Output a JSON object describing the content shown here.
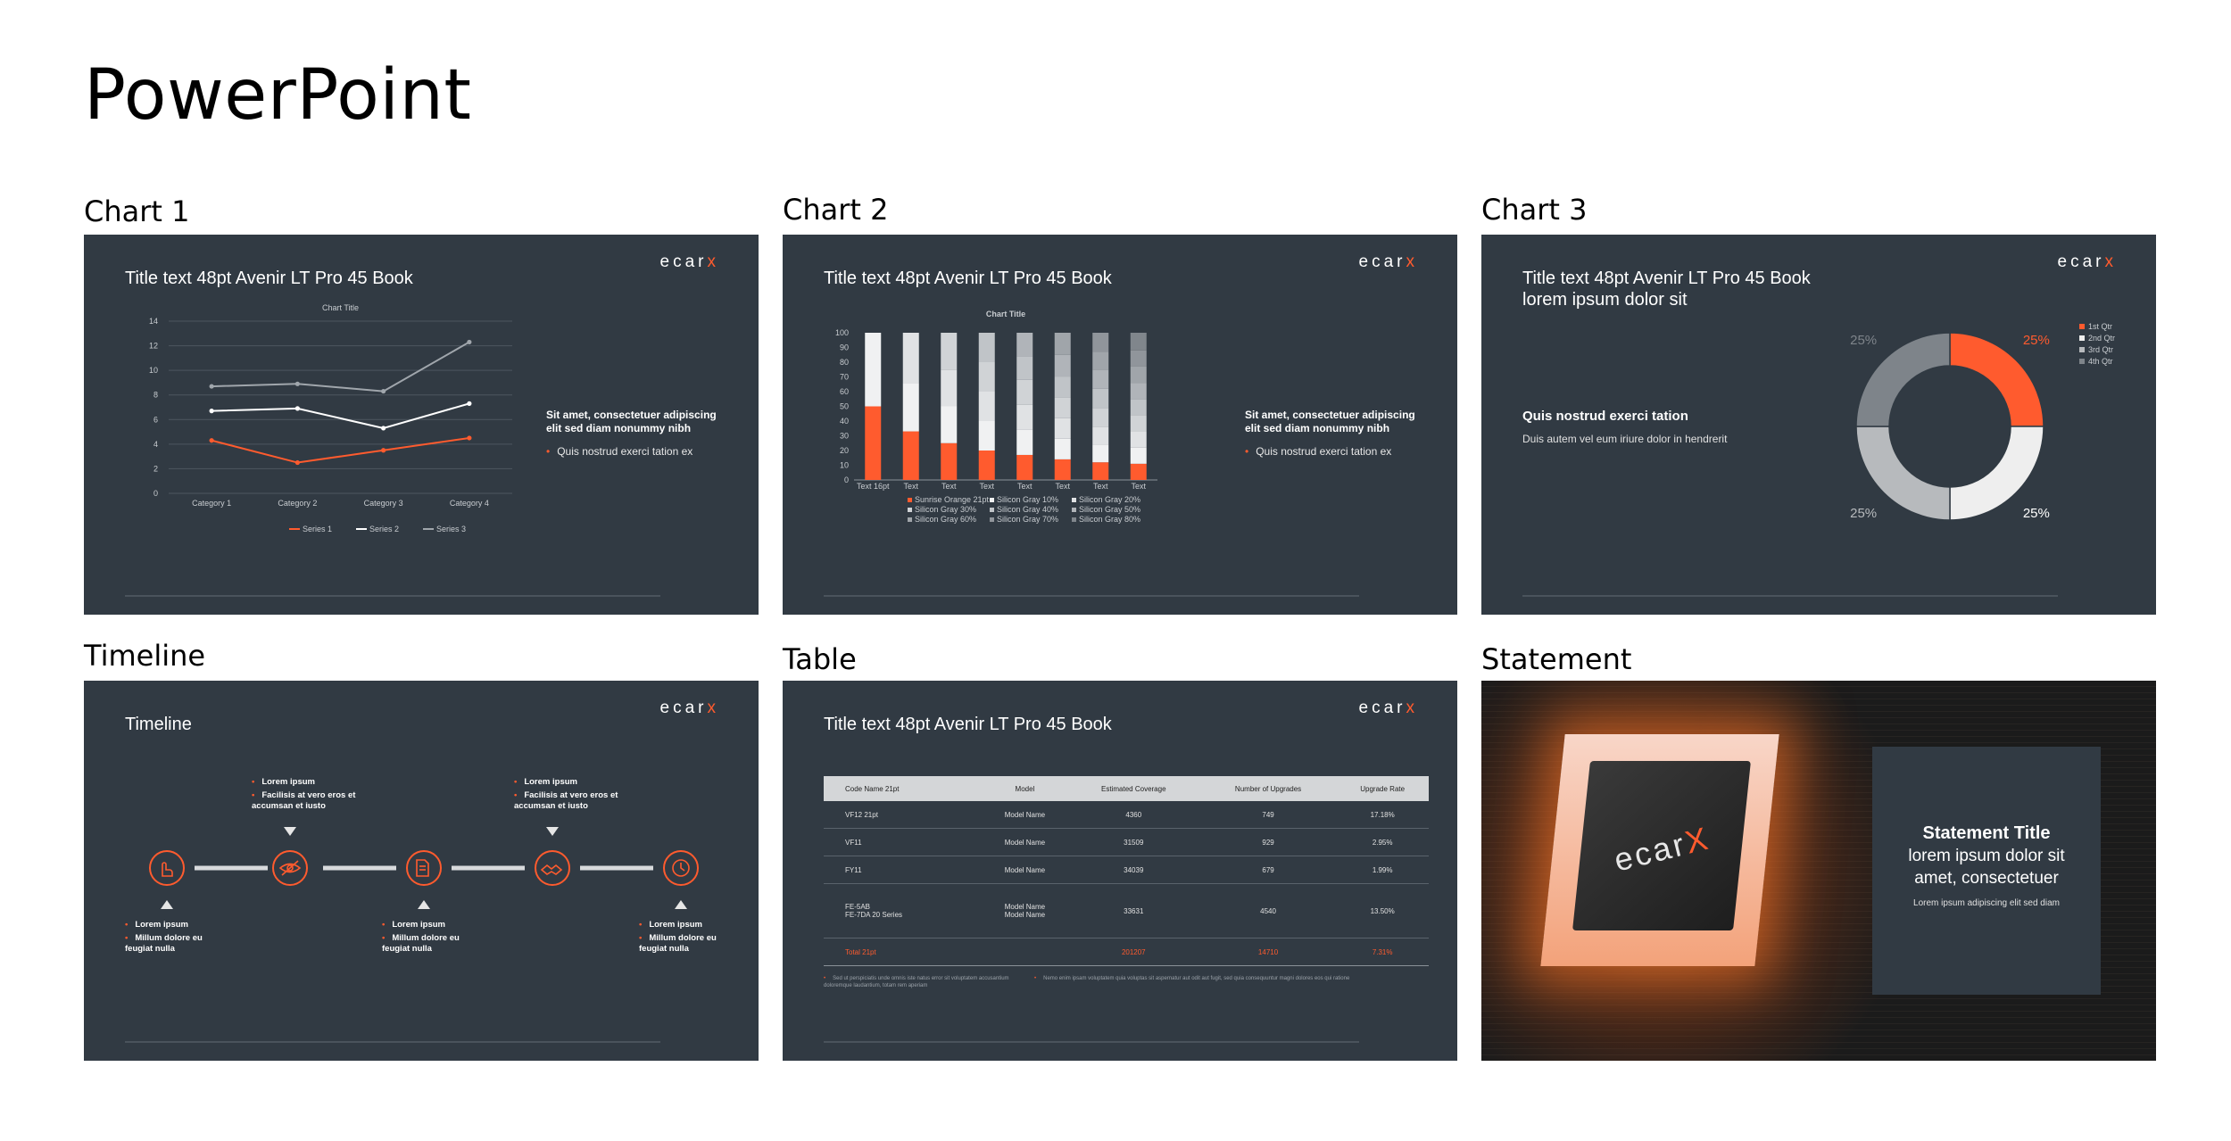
{
  "page": {
    "title": "PowerPoint"
  },
  "brand": {
    "logo_main": "ecar",
    "logo_accent": "x",
    "accent": "#ff5b2e",
    "slide_bg": "#313a43"
  },
  "sections": {
    "chart1": "Chart 1",
    "chart2": "Chart 2",
    "chart3": "Chart 3",
    "timeline": "Timeline",
    "table": "Table",
    "statement": "Statement"
  },
  "slide_common": {
    "title": "Title text 48pt Avenir LT Pro 45 Book",
    "side_heading": "Sit amet, consectetuer adipiscing elit sed diam nonummy nibh",
    "side_bullet": "Quis nostrud exerci tation ex"
  },
  "chart1": {
    "chart_data": {
      "type": "line",
      "title": "Chart Title",
      "categories": [
        "Category 1",
        "Category 2",
        "Category 3",
        "Category 4"
      ],
      "series": [
        {
          "name": "Series 1",
          "values": [
            4.3,
            2.5,
            3.5,
            4.5
          ],
          "color": "#ff5b2e"
        },
        {
          "name": "Series 2",
          "values": [
            6.7,
            6.9,
            5.3,
            7.3
          ],
          "color": "#ffffff"
        },
        {
          "name": "Series 3",
          "values": [
            8.7,
            8.9,
            8.3,
            12.3
          ],
          "color": "#a0a6ac"
        }
      ],
      "ylim": [
        0,
        14
      ],
      "yticks": [
        "0",
        "2",
        "4",
        "6",
        "8",
        "10",
        "12",
        "14"
      ],
      "legend": "bottom",
      "grid": true
    }
  },
  "chart2": {
    "chart_data": {
      "type": "bar",
      "title": "Chart Title",
      "categories": [
        "Text 16pt",
        "Text",
        "Text",
        "Text",
        "Text",
        "Text",
        "Text",
        "Text"
      ],
      "ylim": [
        0,
        100
      ],
      "yticks": [
        "0",
        "10",
        "20",
        "30",
        "40",
        "50",
        "60",
        "70",
        "80",
        "90",
        "100"
      ],
      "segments": [
        [
          50,
          50
        ],
        [
          33,
          33,
          34
        ],
        [
          25,
          25,
          25,
          25
        ],
        [
          20,
          20,
          20,
          20,
          20
        ],
        [
          17,
          17,
          17,
          17,
          16,
          16
        ],
        [
          14,
          14,
          14,
          14,
          14,
          15,
          15
        ],
        [
          12,
          12,
          12,
          13,
          13,
          13,
          12,
          13
        ],
        [
          11,
          11,
          11,
          11,
          11,
          11,
          11,
          11,
          12
        ]
      ],
      "legend_items": [
        "Sunrise Orange 21pt",
        "Silicon Gray 10%",
        "Silicon Gray 20%",
        "Silicon Gray 30%",
        "Silicon Gray 40%",
        "Silicon Gray 50%",
        "Silicon Gray 60%",
        "Silicon Gray 70%",
        "Silicon Gray 80%"
      ],
      "legend_colors": [
        "#ff5b2e",
        "#f0f1f2",
        "#e0e2e4",
        "#d0d3d6",
        "#c0c4c8",
        "#b0b4b9",
        "#a0a5aa",
        "#90959b",
        "#80868c"
      ],
      "legend": "bottom"
    }
  },
  "chart3": {
    "title_line1": "Title text 48pt Avenir LT Pro 45 Book",
    "title_line2": "lorem ipsum dolor sit",
    "heading": "Quis nostrud exerci tation",
    "body": "Duis autem vel eum iriure dolor in hendrerit",
    "chart_data": {
      "type": "pie",
      "categories": [
        "1st Qtr",
        "2nd Qtr",
        "3rd Qtr",
        "4th Qtr"
      ],
      "values": [
        25,
        25,
        25,
        25
      ],
      "labels": [
        "25%",
        "25%",
        "25%",
        "25%"
      ],
      "colors": [
        "#ff5b2e",
        "#eeeeee",
        "#b7babd",
        "#7e848a"
      ],
      "legend": "top-right"
    }
  },
  "timeline": {
    "title": "Timeline",
    "top_items": [
      {
        "line1": "Lorem ipsum",
        "line2": "Facilisis at vero eros et accumsan et iusto"
      },
      {
        "line1": "Lorem ipsum",
        "line2": "Facilisis at vero eros et accumsan et iusto"
      }
    ],
    "bottom_items": [
      {
        "line1": "Lorem ipsum",
        "line2": "Millum dolore eu feugiat nulla"
      },
      {
        "line1": "Lorem ipsum",
        "line2": "Millum dolore eu feugiat nulla"
      },
      {
        "line1": "Lorem ipsum",
        "line2": "Millum dolore eu feugiat nulla"
      }
    ],
    "icons": [
      "touch-icon",
      "eye-icon",
      "document-icon",
      "handshake-icon",
      "clock-icon"
    ]
  },
  "table": {
    "title": "Title text 48pt Avenir LT Pro 45 Book",
    "headers": [
      "Code Name 21pt",
      "Model",
      "Estimated Coverage",
      "Number of Upgrades",
      "Upgrade Rate"
    ],
    "rows": [
      [
        "VF12 21pt",
        "Model Name",
        "4360",
        "749",
        "17.18%"
      ],
      [
        "VF11",
        "Model Name",
        "31509",
        "929",
        "2.95%"
      ],
      [
        "FY11",
        "Model Name",
        "34039",
        "679",
        "1.99%"
      ],
      [
        "FE-5AB\nFE-7DA 20 Series",
        "Model Name\nModel Name",
        "33631",
        "4540",
        "13.50%"
      ]
    ],
    "total": [
      "Total 21pt",
      "",
      "201207",
      "14710",
      "7.31%"
    ],
    "note_left": "Sed ut perspiciatis unde omnis iste natus error sit voluptatem accusantium doloremque laudantium, totam rem aperiam",
    "note_right": "Nemo enim ipsam voluptatem quia voluptas sit aspernatur aut odit aut fugit, sed quia consequuntur magni dolores eos qui ratione"
  },
  "statement": {
    "title": "Statement Title",
    "line1": "lorem ipsum dolor sit",
    "line2": "amet, consectetuer",
    "body": "Lorem ipsum adipiscing elit sed diam",
    "chip_logo_main": "ecar",
    "chip_logo_accent": "X"
  }
}
